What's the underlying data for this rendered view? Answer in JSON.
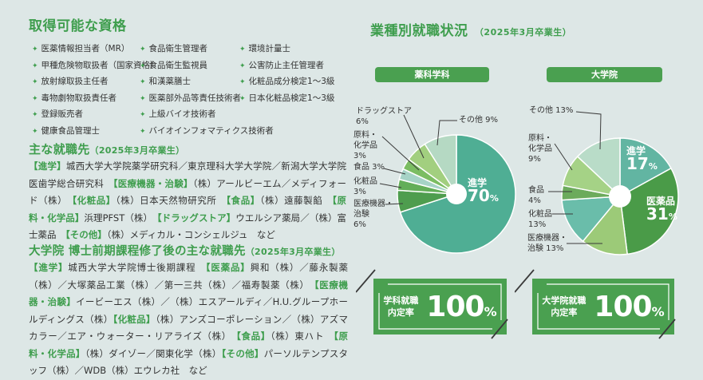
{
  "colors": {
    "accent_green": "#3f9e4e",
    "badge_green": "#4aa050",
    "background": "#dde7e6",
    "text_dark": "#333333",
    "leader_line": "#3a3a3a"
  },
  "qualifications": {
    "heading": "取得可能な資格",
    "bullet": "✦",
    "columns": [
      [
        "医薬情報担当者（MR）",
        "甲種危険物取扱者（国家資格）",
        "放射線取扱主任者",
        "毒物劇物取扱責任者",
        "登録販売者",
        "健康食品管理士"
      ],
      [
        "食品衛生管理者",
        "食品衛生監視員",
        "和漢薬膳士",
        "医薬部外品等責任技術者",
        "上級バイオ技術者",
        "バイオインフォマティクス技術者"
      ],
      [
        "環境計量士",
        "公害防止主任管理者",
        "化粧品成分検定1～3級",
        "日本化粧品検定1～3級"
      ]
    ]
  },
  "employment": {
    "heading": "主な就職先",
    "note": "（2025年3月卒業生）",
    "segments": [
      {
        "t": "cat",
        "x": "【進学】"
      },
      {
        "t": "txt",
        "x": "城西大学大学院薬学研究科／東京理科大学大学院／新潟大学大学院医歯学総合研究科　"
      },
      {
        "t": "cat",
        "x": "【医療機器・治験】"
      },
      {
        "t": "txt",
        "x": "（株）アールビーエム／メディフォード（株）　"
      },
      {
        "t": "cat",
        "x": "【化粧品】"
      },
      {
        "t": "txt",
        "x": "（株）日本天然物研究所　"
      },
      {
        "t": "cat",
        "x": "【食品】"
      },
      {
        "t": "txt",
        "x": "（株）遠藤製餡　"
      },
      {
        "t": "cat",
        "x": "【原料・化学品】"
      },
      {
        "t": "txt",
        "x": "浜理PFST（株）　"
      },
      {
        "t": "cat",
        "x": "【ドラッグストア】"
      },
      {
        "t": "txt",
        "x": "ウエルシア薬局／（株）富士薬品　"
      },
      {
        "t": "cat",
        "x": "【その他】"
      },
      {
        "t": "txt",
        "x": "（株）メディカル・コンシェルジュ　など"
      }
    ]
  },
  "grad_employment": {
    "heading": "大学院 博士前期課程修了後の主な就職先",
    "note": "（2025年3月卒業生）",
    "segments": [
      {
        "t": "cat",
        "x": "【進学】"
      },
      {
        "t": "txt",
        "x": "城西大学大学院博士後期課程　"
      },
      {
        "t": "cat",
        "x": "【医薬品】"
      },
      {
        "t": "txt",
        "x": "興和（株）／藤永製薬（株）／大塚薬品工業（株）／第一三共（株）／福寿製薬（株）　"
      },
      {
        "t": "cat",
        "x": "【医療機器・治験】"
      },
      {
        "t": "txt",
        "x": "イービーエス（株）／（株）エスアールディ／H.U.グループホールディングス（株）"
      },
      {
        "t": "cat",
        "x": "【化粧品】"
      },
      {
        "t": "txt",
        "x": "（株）アンズコーポレーション／（株）アズマカラー／エア・ウォーター・リアライズ（株）　"
      },
      {
        "t": "cat",
        "x": "【食品】"
      },
      {
        "t": "txt",
        "x": "（株）東ハト　"
      },
      {
        "t": "cat",
        "x": "【原料・化学品】"
      },
      {
        "t": "txt",
        "x": "（株）ダイゾー／関東化学（株）"
      },
      {
        "t": "cat",
        "x": "【その他】"
      },
      {
        "t": "txt",
        "x": "パーソルテンプスタッフ（株）／WDB（株）エウレカ社　など"
      }
    ]
  },
  "industry": {
    "heading": "業種別就職状況",
    "note": "（2025年3月卒業生）",
    "group_labels": [
      "薬科学科",
      "大学院"
    ]
  },
  "chart_data": [
    {
      "type": "pie",
      "group": "薬科学科",
      "unit": "%",
      "legend_position": "callouts",
      "slices": [
        {
          "name": "進学",
          "value": 70,
          "color": "#4fae94",
          "label_inside": true
        },
        {
          "name": "医療機器・治験",
          "value": 6,
          "color": "#4e9d4e",
          "callout": "医療機器・\n治験\n6%"
        },
        {
          "name": "化粧品",
          "value": 3,
          "color": "#63ae58",
          "callout": "化粧品\n3%"
        },
        {
          "name": "食品",
          "value": 3,
          "color": "#a6d3c6",
          "callout": "食品 3%"
        },
        {
          "name": "原料・化学品",
          "value": 3,
          "color": "#7bbd62",
          "callout": "原料・\n化学品\n3%"
        },
        {
          "name": "ドラッグストア",
          "value": 6,
          "color": "#a2cf7f",
          "callout": "ドラッグストア\n6%"
        },
        {
          "name": "その他",
          "value": 9,
          "color": "#b5d9c3",
          "callout": "その他  9%"
        }
      ]
    },
    {
      "type": "pie",
      "group": "大学院",
      "unit": "%",
      "legend_position": "callouts",
      "slices": [
        {
          "name": "進学",
          "value": 17,
          "color": "#62b5a2",
          "label_inside": true
        },
        {
          "name": "医薬品",
          "value": 31,
          "color": "#4a9b48",
          "label_inside": true
        },
        {
          "name": "医療機器・治験",
          "value": 13,
          "color": "#9cca78",
          "callout": "医療機器・\n治験  13%"
        },
        {
          "name": "化粧品",
          "value": 13,
          "color": "#6abdaa",
          "callout": "化粧品\n13%"
        },
        {
          "name": "食品",
          "value": 4,
          "color": "#6cab5c",
          "callout": "食品\n4%"
        },
        {
          "name": "原料・化学品",
          "value": 9,
          "color": "#a5d286",
          "callout": "原料・\n化学品\n9%"
        },
        {
          "name": "その他",
          "value": 13,
          "color": "#b9dcc8",
          "callout": "その他  13%"
        }
      ]
    }
  ],
  "rate_badges": [
    {
      "label": "学科就職\n内定率",
      "value": "100",
      "unit": "%"
    },
    {
      "label": "大学院就職\n内定率",
      "value": "100",
      "unit": "%"
    }
  ]
}
